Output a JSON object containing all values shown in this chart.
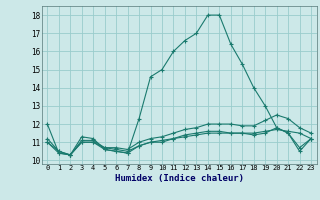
{
  "title": "",
  "xlabel": "Humidex (Indice chaleur)",
  "ylabel": "",
  "background_color": "#cce8e8",
  "grid_color": "#99cccc",
  "line_color": "#1a7a6e",
  "xlim": [
    -0.5,
    23.5
  ],
  "ylim": [
    9.8,
    18.5
  ],
  "yticks": [
    10,
    11,
    12,
    13,
    14,
    15,
    16,
    17,
    18
  ],
  "xticks": [
    0,
    1,
    2,
    3,
    4,
    5,
    6,
    7,
    8,
    9,
    10,
    11,
    12,
    13,
    14,
    15,
    16,
    17,
    18,
    19,
    20,
    21,
    22,
    23
  ],
  "series": [
    {
      "x": [
        0,
        1,
        2,
        3,
        4,
        5,
        6,
        7,
        8,
        9,
        10,
        11,
        12,
        13,
        14,
        15,
        16,
        17,
        18,
        19,
        20,
        21,
        22,
        23
      ],
      "y": [
        12.0,
        10.4,
        10.3,
        11.3,
        11.2,
        10.6,
        10.5,
        10.4,
        12.3,
        14.6,
        15.0,
        16.0,
        16.6,
        17.0,
        18.0,
        18.0,
        16.4,
        15.3,
        14.0,
        13.0,
        11.8,
        11.5,
        10.5,
        11.2
      ]
    },
    {
      "x": [
        0,
        1,
        2,
        3,
        4,
        5,
        6,
        7,
        8,
        9,
        10,
        11,
        12,
        13,
        14,
        15,
        16,
        17,
        18,
        19,
        20,
        21,
        22,
        23
      ],
      "y": [
        11.0,
        10.5,
        10.3,
        11.0,
        11.0,
        10.7,
        10.6,
        10.5,
        10.8,
        11.0,
        11.1,
        11.2,
        11.3,
        11.4,
        11.5,
        11.5,
        11.5,
        11.5,
        11.5,
        11.6,
        11.7,
        11.6,
        11.5,
        11.2
      ]
    },
    {
      "x": [
        0,
        1,
        2,
        3,
        4,
        5,
        6,
        7,
        8,
        9,
        10,
        11,
        12,
        13,
        14,
        15,
        16,
        17,
        18,
        19,
        20,
        21,
        22,
        23
      ],
      "y": [
        11.0,
        10.4,
        10.3,
        11.0,
        11.0,
        10.6,
        10.5,
        10.4,
        10.8,
        11.0,
        11.0,
        11.2,
        11.4,
        11.5,
        11.6,
        11.6,
        11.5,
        11.5,
        11.4,
        11.5,
        11.8,
        11.5,
        10.7,
        11.2
      ]
    },
    {
      "x": [
        0,
        1,
        2,
        3,
        4,
        5,
        6,
        7,
        8,
        9,
        10,
        11,
        12,
        13,
        14,
        15,
        16,
        17,
        18,
        19,
        20,
        21,
        22,
        23
      ],
      "y": [
        11.2,
        10.5,
        10.3,
        11.1,
        11.1,
        10.7,
        10.7,
        10.6,
        11.0,
        11.2,
        11.3,
        11.5,
        11.7,
        11.8,
        12.0,
        12.0,
        12.0,
        11.9,
        11.9,
        12.2,
        12.5,
        12.3,
        11.8,
        11.5
      ]
    }
  ]
}
